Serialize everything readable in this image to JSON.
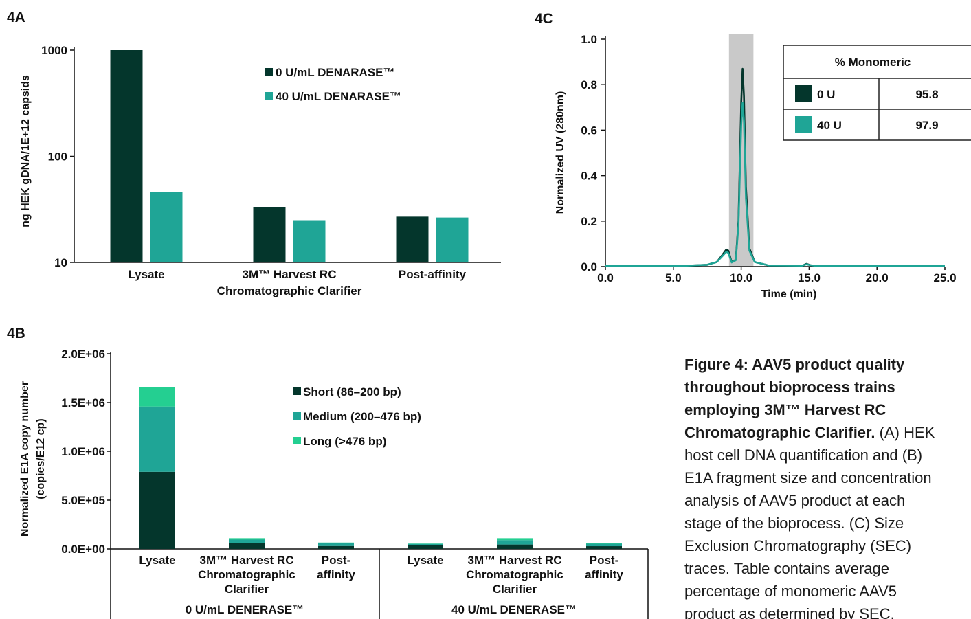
{
  "panels": {
    "a": "4A",
    "b": "4B",
    "c": "4C"
  },
  "colors": {
    "dark": "#04362c",
    "teal": "#1fa596",
    "light": "#24cf91",
    "shade": "#c9c9c9",
    "axis": "#111111",
    "table_border": "#222222"
  },
  "chart_data": [
    {
      "id": "4A",
      "type": "bar",
      "ylabel": "ng HEK gDNA/1E+12 capsids",
      "yscale": "log",
      "ylim": [
        10,
        1000
      ],
      "yticks": [
        "10",
        "100",
        "1000"
      ],
      "categories": [
        [
          "Lysate"
        ],
        [
          "3M™ Harvest RC",
          "Chromatographic Clarifier"
        ],
        [
          "Post-affinity"
        ]
      ],
      "series": [
        {
          "name": "0 U/mL DENARASE™",
          "color": "dark",
          "values": [
            1000,
            33,
            27
          ]
        },
        {
          "name": "40 U/mL DENARASE™",
          "color": "teal",
          "values": [
            46,
            25,
            26.5
          ]
        }
      ],
      "legend": "top-right"
    },
    {
      "id": "4B",
      "type": "bar",
      "stacked": true,
      "ylabel": [
        "Normalized E1A copy number",
        "(copies/E12 cp)"
      ],
      "ylim": [
        0,
        2000000
      ],
      "yticks": [
        "0.0E+00",
        "5.0E+05",
        "1.0E+06",
        "1.5E+06",
        "2.0E+06"
      ],
      "categories": [
        [
          "Lysate"
        ],
        [
          "3M™ Harvest RC",
          "Chromatographic",
          "Clarifier"
        ],
        [
          "Post-",
          "affinity"
        ],
        [
          "Lysate"
        ],
        [
          "3M™ Harvest RC",
          "Chromatographic",
          "Clarifier"
        ],
        [
          "Post-",
          "affinity"
        ]
      ],
      "groups": [
        "0 U/mL DENERASE™",
        "40 U/mL DENERASE™"
      ],
      "series": [
        {
          "name": "Short (86–200 bp)",
          "color": "dark",
          "values": [
            790000,
            60000,
            30000,
            40000,
            45000,
            28000
          ]
        },
        {
          "name": "Medium (200–476 bp)",
          "color": "teal",
          "values": [
            670000,
            35000,
            27000,
            12000,
            45000,
            25000
          ]
        },
        {
          "name": "Long (>476 bp)",
          "color": "light",
          "values": [
            200000,
            15000,
            8000,
            3000,
            20000,
            7000
          ]
        }
      ],
      "legend": "top-right"
    },
    {
      "id": "4C",
      "type": "line",
      "xlabel": "Time (min)",
      "ylabel": "Normalized UV (280nm)",
      "xlim": [
        0,
        25
      ],
      "ylim": [
        0,
        1.0
      ],
      "xticks": [
        "0.0",
        "5.0",
        "10.0",
        "15.0",
        "20.0",
        "25.0"
      ],
      "yticks": [
        "0.0",
        "0.2",
        "0.4",
        "0.6",
        "0.8",
        "1.0"
      ],
      "shaded_range": [
        9.1,
        10.9
      ],
      "series": [
        {
          "name": "0 U",
          "color": "dark",
          "x": [
            0,
            3,
            6,
            7.5,
            8.2,
            8.6,
            8.9,
            9.05,
            9.3,
            9.6,
            9.8,
            10.0,
            10.1,
            10.2,
            10.35,
            10.6,
            11.0,
            12,
            14.5,
            14.8,
            15.1,
            15.5,
            17,
            20,
            25
          ],
          "y": [
            0.002,
            0.003,
            0.004,
            0.008,
            0.02,
            0.05,
            0.075,
            0.07,
            0.02,
            0.03,
            0.2,
            0.72,
            0.87,
            0.75,
            0.35,
            0.08,
            0.02,
            0.005,
            0.004,
            0.012,
            0.006,
            0.003,
            0.002,
            0.002,
            0.002
          ]
        },
        {
          "name": "40 U",
          "color": "teal",
          "x": [
            0,
            3,
            6,
            7.5,
            8.2,
            8.6,
            8.9,
            9.05,
            9.3,
            9.6,
            9.8,
            10.0,
            10.1,
            10.2,
            10.35,
            10.6,
            11.0,
            12,
            14.5,
            14.8,
            15.1,
            15.5,
            17,
            20,
            25
          ],
          "y": [
            0.002,
            0.003,
            0.004,
            0.008,
            0.02,
            0.045,
            0.065,
            0.06,
            0.018,
            0.028,
            0.18,
            0.62,
            0.72,
            0.64,
            0.3,
            0.07,
            0.02,
            0.005,
            0.004,
            0.01,
            0.006,
            0.003,
            0.002,
            0.002,
            0.002
          ]
        }
      ],
      "table": {
        "title": "% Monomeric",
        "rows": [
          {
            "label": "0 U",
            "color": "dark",
            "value": "95.8"
          },
          {
            "label": "40 U",
            "color": "teal",
            "value": "97.9"
          }
        ]
      }
    }
  ],
  "caption": {
    "title_lines": [
      "Figure 4: AAV5 product quality",
      "throughout bioprocess trains",
      "employing 3M™ Harvest RC",
      "Chromatographic Clarifier."
    ],
    "body_first": " (A) HEK",
    "body_lines": [
      "host cell DNA quantification and (B)",
      "E1A fragment size and concentration",
      "analysis of AAV5 product at each",
      "stage of the bioprocess. (C) Size",
      "Exclusion Chromatography (SEC)",
      "traces. Table contains average",
      "percentage of monomeric AAV5",
      "product as determined by SEC."
    ]
  }
}
